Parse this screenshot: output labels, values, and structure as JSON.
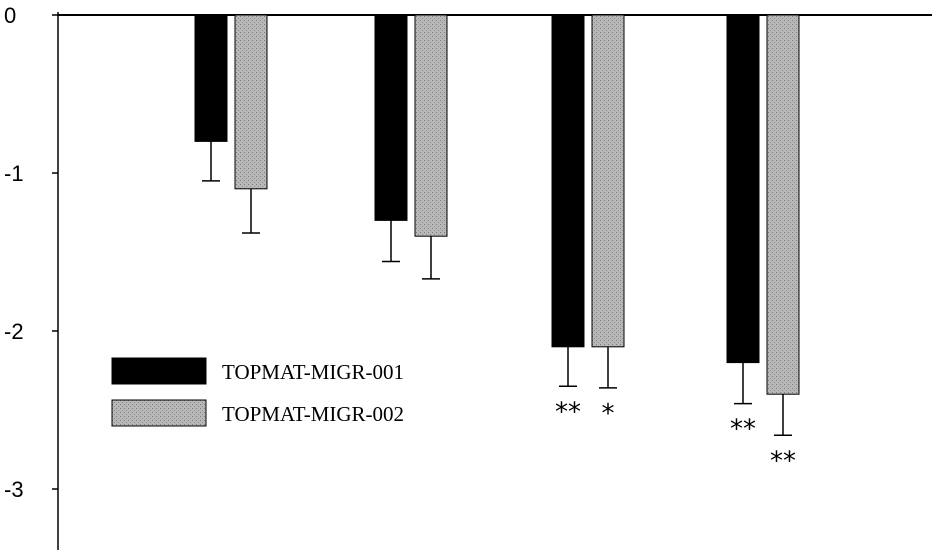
{
  "chart_data": {
    "type": "bar",
    "title": "",
    "xlabel": "",
    "ylabel": "",
    "ylim": [
      -3.4,
      0
    ],
    "yticks": [
      0,
      -1,
      -2,
      -3
    ],
    "ytick_labels": [
      "0",
      "-1",
      "-2",
      "-3"
    ],
    "categories": [
      "",
      "",
      "",
      ""
    ],
    "grid": false,
    "legend_position": "center-left",
    "series": [
      {
        "name": "TOPMAT-MIGR-001",
        "color": "#000000",
        "values": [
          -0.8,
          -1.3,
          -2.1,
          -2.2
        ],
        "errors": [
          0.25,
          0.26,
          0.25,
          0.26
        ],
        "significance": [
          "",
          "",
          "**",
          "**"
        ]
      },
      {
        "name": "TOPMAT-MIGR-002",
        "color": "#b5b5b5",
        "values": [
          -1.1,
          -1.4,
          -2.1,
          -2.4
        ],
        "errors": [
          0.28,
          0.27,
          0.26,
          0.26
        ],
        "significance": [
          "",
          "",
          "*",
          "**"
        ]
      }
    ]
  }
}
